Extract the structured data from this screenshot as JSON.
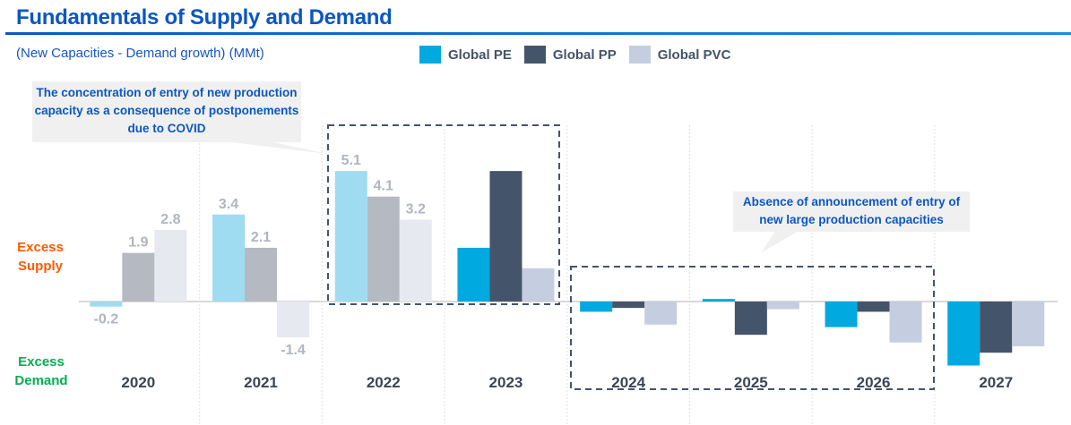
{
  "title": "Fundamentals of Supply and Demand",
  "subtitle": "(New Capacities - Demand growth) (MMt)",
  "legend": [
    {
      "name": "Global PE",
      "color": "#00a9e0"
    },
    {
      "name": "Global PP",
      "color": "#44546a"
    },
    {
      "name": "Global PVC",
      "color": "#c5cee0"
    }
  ],
  "side_labels": {
    "supply": "Excess\nSupply",
    "demand": "Excess\nDemand",
    "supply_color": "#ff5a00",
    "demand_color": "#00b050"
  },
  "callouts": {
    "covid": "The concentration of entry of new production capacity as a consequence of postponements due to COVID",
    "absence": "Absence of announcement of entry of new large production capacities"
  },
  "chart_data": {
    "type": "bar",
    "title": "Fundamentals of Supply and Demand",
    "ylabel": "(New Capacities - Demand growth) (MMt)",
    "categories": [
      "2020",
      "2021",
      "2022",
      "2023",
      "2024",
      "2025",
      "2026",
      "2027"
    ],
    "series": [
      {
        "name": "Global PE",
        "values": [
          -0.2,
          3.4,
          5.1,
          2.1,
          -0.4,
          0.1,
          -1.0,
          -2.5
        ]
      },
      {
        "name": "Global PP",
        "values": [
          1.9,
          2.1,
          4.1,
          5.1,
          -0.25,
          -1.3,
          -0.4,
          -2.0
        ]
      },
      {
        "name": "Global PVC",
        "values": [
          2.8,
          -1.4,
          3.2,
          1.3,
          -0.9,
          -0.3,
          -1.6,
          -1.75
        ]
      }
    ],
    "labeled_categories": [
      "2020",
      "2021",
      "2022"
    ],
    "faded_colors": [
      "#9fdcf2",
      "#b4b9c2",
      "#e6e9f0"
    ],
    "label_color": "#b0b5bf",
    "ylim": [
      -2.8,
      5.5
    ],
    "grid": false,
    "legend_position": "top"
  }
}
